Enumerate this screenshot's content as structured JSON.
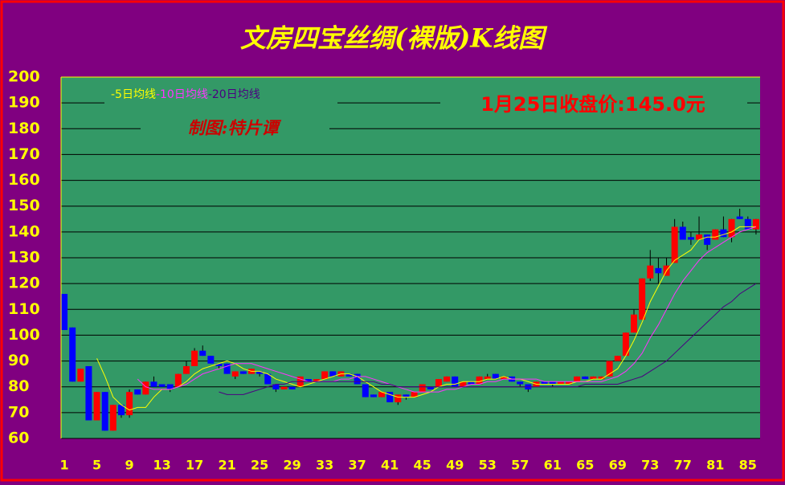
{
  "chart_data": {
    "type": "candlestick",
    "title": "文房四宝丝绸(裸版)K线图",
    "annotations": [
      "1月25日收盘价:145.0元",
      "制图:特片谭"
    ],
    "x": [
      1,
      2,
      3,
      4,
      5,
      6,
      7,
      8,
      9,
      10,
      11,
      12,
      13,
      14,
      15,
      16,
      17,
      18,
      19,
      20,
      21,
      22,
      23,
      24,
      25,
      26,
      27,
      28,
      29,
      30,
      31,
      32,
      33,
      34,
      35,
      36,
      37,
      38,
      39,
      40,
      41,
      42,
      43,
      44,
      45,
      46,
      47,
      48,
      49,
      50,
      51,
      52,
      53,
      54,
      55,
      56,
      57,
      58,
      59,
      60,
      61,
      62,
      63,
      64,
      65,
      66,
      67,
      68,
      69,
      70,
      71,
      72,
      73,
      74,
      75,
      76,
      77,
      78,
      79,
      80,
      81,
      82,
      83,
      84,
      85,
      86
    ],
    "xlim": [
      0.6,
      86.5
    ],
    "xticks": [
      1,
      5,
      9,
      13,
      17,
      21,
      25,
      29,
      33,
      37,
      41,
      45,
      49,
      53,
      57,
      61,
      65,
      69,
      73,
      77,
      81,
      85
    ],
    "ylim": [
      60,
      200
    ],
    "yticks": [
      60,
      70,
      80,
      90,
      100,
      110,
      120,
      130,
      140,
      150,
      160,
      170,
      180,
      190,
      200
    ],
    "grid": true,
    "up_color": "#ff0000",
    "down_color": "#0000ff",
    "open": [
      116,
      103,
      82,
      88,
      67,
      78,
      63,
      73,
      69,
      79,
      77,
      82,
      81,
      81,
      80,
      85,
      88,
      94,
      92,
      89,
      89,
      84,
      86,
      85,
      86,
      85,
      81,
      79,
      80,
      80,
      83,
      82,
      83,
      86,
      84,
      85,
      85,
      81,
      77,
      76,
      78,
      74,
      77,
      76,
      78,
      80,
      80,
      82,
      84,
      80,
      82,
      81,
      83,
      85,
      83,
      84,
      82,
      81,
      80,
      82,
      82,
      81,
      81,
      82,
      84,
      83,
      83,
      84,
      90,
      92,
      101,
      106,
      122,
      126,
      123,
      128,
      142,
      138,
      137,
      139,
      137,
      141,
      138,
      146,
      145,
      141
    ],
    "high": [
      116,
      103,
      87,
      88,
      78,
      78,
      73,
      73,
      79,
      79,
      82,
      84,
      81,
      81,
      85,
      90,
      95,
      96,
      92,
      89,
      89,
      86,
      86,
      87,
      86,
      85,
      81,
      80,
      80,
      84,
      83,
      83,
      86,
      86,
      86,
      85,
      85,
      81,
      77,
      78,
      78,
      77,
      77,
      78,
      81,
      80,
      83,
      84,
      84,
      82,
      82,
      84,
      85,
      85,
      84,
      84,
      82,
      81,
      82,
      82,
      82,
      82,
      82,
      84,
      84,
      84,
      84,
      90,
      92,
      101,
      110,
      122,
      133,
      130,
      130,
      145,
      144,
      140,
      146,
      139,
      141,
      146,
      145,
      149,
      146,
      145
    ],
    "low": [
      102,
      82,
      82,
      67,
      67,
      63,
      63,
      68,
      68,
      77,
      77,
      80,
      80,
      78,
      80,
      85,
      88,
      92,
      89,
      87,
      85,
      83,
      85,
      85,
      84,
      81,
      78,
      79,
      79,
      80,
      82,
      82,
      83,
      84,
      84,
      84,
      81,
      76,
      76,
      76,
      74,
      73,
      75,
      76,
      78,
      79,
      80,
      82,
      80,
      80,
      81,
      81,
      83,
      83,
      83,
      82,
      80,
      78,
      80,
      81,
      80,
      81,
      81,
      82,
      83,
      83,
      83,
      84,
      90,
      92,
      101,
      106,
      121,
      120,
      123,
      128,
      137,
      135,
      137,
      133,
      137,
      138,
      136,
      145,
      141,
      139
    ],
    "close": [
      102,
      82,
      87,
      67,
      78,
      63,
      73,
      69,
      78,
      77,
      82,
      80,
      80,
      79,
      85,
      88,
      94,
      92,
      89,
      88,
      85,
      86,
      85,
      87,
      85,
      81,
      79,
      80,
      79,
      84,
      82,
      83,
      86,
      84,
      86,
      84,
      81,
      76,
      76,
      78,
      74,
      77,
      76,
      78,
      81,
      79,
      83,
      84,
      80,
      82,
      81,
      84,
      84,
      83,
      84,
      82,
      81,
      79,
      82,
      81,
      81,
      82,
      82,
      84,
      83,
      84,
      84,
      90,
      92,
      101,
      108,
      122,
      127,
      124,
      127,
      142,
      137,
      137,
      139,
      135,
      141,
      138,
      145,
      145,
      141,
      145
    ],
    "series": [
      {
        "name": "-5日均线",
        "color": "#ffff00",
        "values": [
          null,
          null,
          null,
          null,
          91,
          84,
          76,
          73,
          71,
          72,
          72,
          76,
          79,
          79,
          80,
          82,
          85,
          87,
          88,
          89,
          90,
          89,
          87,
          86,
          86,
          85,
          83,
          82,
          81,
          80,
          81,
          82,
          83,
          84,
          85,
          85,
          84,
          82,
          80,
          78,
          77,
          76,
          76,
          76,
          77,
          78,
          80,
          81,
          81,
          82,
          82,
          82,
          83,
          83,
          84,
          83,
          83,
          82,
          81,
          81,
          81,
          81,
          81,
          82,
          82,
          83,
          83,
          85,
          87,
          92,
          98,
          105,
          113,
          119,
          125,
          129,
          131,
          133,
          137,
          138,
          138,
          139,
          140,
          142,
          142,
          142
        ]
      },
      {
        "name": "-10日均线",
        "color": "#ff33ff",
        "values": [
          null,
          null,
          null,
          null,
          null,
          null,
          null,
          null,
          null,
          83,
          80,
          79,
          79,
          79,
          80,
          81,
          83,
          85,
          86,
          87,
          88,
          89,
          89,
          89,
          88,
          87,
          86,
          85,
          84,
          83,
          82,
          82,
          82,
          82,
          83,
          83,
          84,
          84,
          83,
          82,
          81,
          80,
          79,
          78,
          78,
          78,
          78,
          79,
          79,
          80,
          81,
          81,
          82,
          82,
          83,
          83,
          83,
          83,
          83,
          82,
          82,
          82,
          82,
          82,
          82,
          82,
          82,
          83,
          84,
          86,
          89,
          93,
          99,
          104,
          110,
          116,
          121,
          125,
          129,
          132,
          134,
          136,
          138,
          140,
          141,
          142
        ]
      },
      {
        "name": "-20日均线",
        "color": "#4b0082",
        "values": [
          null,
          null,
          null,
          null,
          null,
          null,
          null,
          null,
          null,
          null,
          null,
          null,
          null,
          null,
          null,
          null,
          null,
          null,
          null,
          78,
          77,
          77,
          77,
          78,
          79,
          80,
          81,
          81,
          82,
          82,
          82,
          82,
          82,
          82,
          82,
          82,
          82,
          82,
          82,
          81,
          81,
          80,
          80,
          80,
          80,
          80,
          80,
          80,
          80,
          80,
          80,
          80,
          80,
          80,
          80,
          80,
          80,
          80,
          80,
          80,
          80,
          80,
          80,
          80,
          81,
          81,
          81,
          81,
          81,
          82,
          83,
          84,
          86,
          88,
          90,
          93,
          96,
          99,
          102,
          105,
          108,
          111,
          113,
          116,
          118,
          120
        ]
      }
    ]
  }
}
